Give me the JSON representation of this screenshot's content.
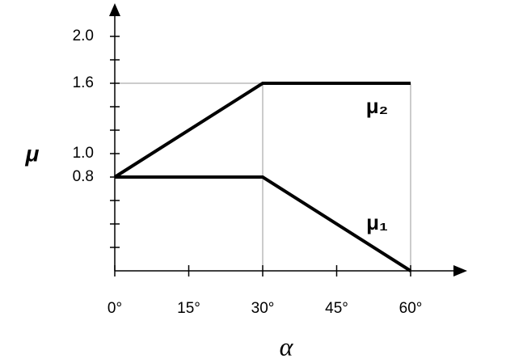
{
  "chart_data": {
    "type": "line",
    "x_label": "α",
    "y_label": "μ",
    "x": [
      0,
      30,
      60
    ],
    "series": [
      {
        "name": "μ₂",
        "color": "#000000",
        "values": [
          0.8,
          1.6,
          1.6
        ]
      },
      {
        "name": "μ₁",
        "color": "#000000",
        "values": [
          0.8,
          0.8,
          0
        ]
      }
    ],
    "xlim": [
      0,
      70
    ],
    "ylim": [
      0,
      2.2
    ],
    "xticks": [
      {
        "value": 0,
        "label": "0°"
      },
      {
        "value": 15,
        "label": "15°"
      },
      {
        "value": 30,
        "label": "30°"
      },
      {
        "value": 45,
        "label": "45°"
      },
      {
        "value": 60,
        "label": "60°"
      }
    ],
    "yticks": [
      {
        "value": 0.2,
        "label": null
      },
      {
        "value": 0.4,
        "label": null
      },
      {
        "value": 0.6,
        "label": null
      },
      {
        "value": 0.8,
        "label": "0.8"
      },
      {
        "value": 1.0,
        "label": "1.0"
      },
      {
        "value": 1.2,
        "label": null
      },
      {
        "value": 1.4,
        "label": null
      },
      {
        "value": 1.6,
        "label": "1.6"
      },
      {
        "value": 1.8,
        "label": null
      },
      {
        "value": 2.0,
        "label": "2.0"
      }
    ],
    "guide_color": "#999999"
  }
}
